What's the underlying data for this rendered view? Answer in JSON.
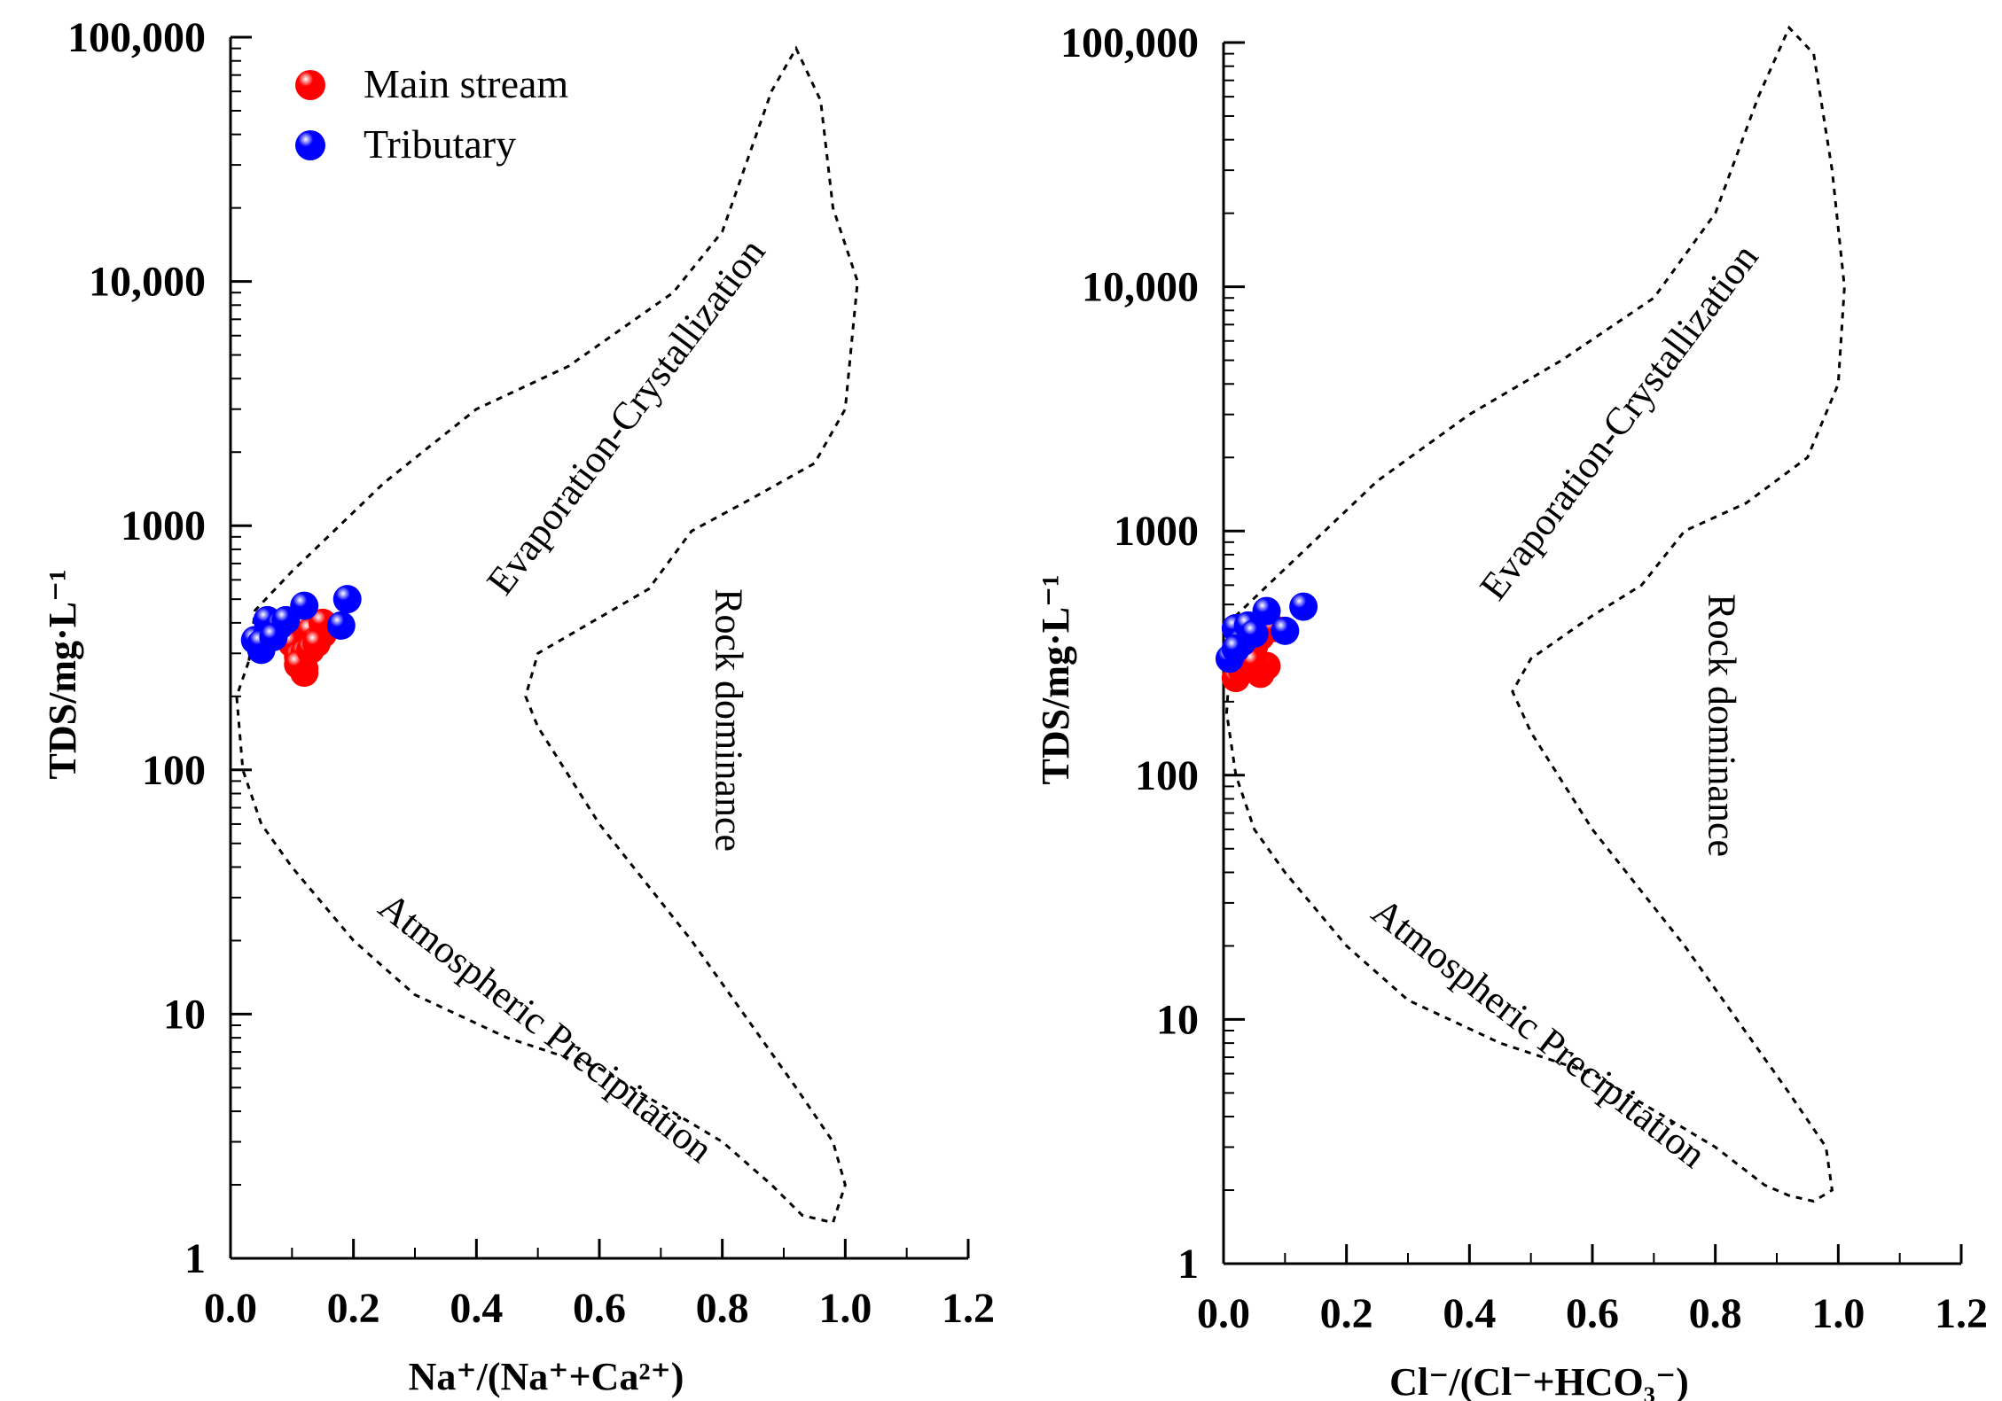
{
  "chart_data": [
    {
      "type": "scatter",
      "title": "",
      "xlabel": "Na⁺/(Na⁺+Ca²⁺)",
      "ylabel": "TDS/mg·L⁻¹",
      "x_ticks": [
        "0.0",
        "0.2",
        "0.4",
        "0.6",
        "0.8",
        "1.0",
        "1.2"
      ],
      "y_ticks": [
        "1",
        "10",
        "100",
        "1000",
        "10,000",
        "100,000"
      ],
      "xlim": [
        0,
        1.2
      ],
      "ylim": [
        1,
        100000
      ],
      "yscale": "log",
      "legend_position": "top-left",
      "region_labels": {
        "evaporation": "Evaporation-Crystallization",
        "rock": "Rock dominance",
        "atmospheric": "Atmospheric Precipitation"
      },
      "boundary": [
        [
          0.03,
          280
        ],
        [
          0.04,
          450
        ],
        [
          0.1,
          650
        ],
        [
          0.25,
          1500
        ],
        [
          0.4,
          3000
        ],
        [
          0.55,
          4500
        ],
        [
          0.72,
          9000
        ],
        [
          0.8,
          16000
        ],
        [
          0.88,
          60000
        ],
        [
          0.92,
          90000
        ],
        [
          0.96,
          55000
        ],
        [
          0.98,
          20000
        ],
        [
          1.02,
          10000
        ],
        [
          1.0,
          3000
        ],
        [
          0.95,
          1800
        ],
        [
          0.85,
          1300
        ],
        [
          0.75,
          950
        ],
        [
          0.68,
          550
        ],
        [
          0.6,
          420
        ],
        [
          0.5,
          300
        ],
        [
          0.48,
          200
        ],
        [
          0.5,
          150
        ],
        [
          0.6,
          60
        ],
        [
          0.75,
          20
        ],
        [
          0.92,
          5
        ],
        [
          0.98,
          3
        ],
        [
          1.0,
          2
        ],
        [
          0.98,
          1.4
        ],
        [
          0.93,
          1.5
        ],
        [
          0.88,
          2
        ],
        [
          0.8,
          3
        ],
        [
          0.6,
          6
        ],
        [
          0.45,
          8
        ],
        [
          0.3,
          12
        ],
        [
          0.2,
          20
        ],
        [
          0.1,
          40
        ],
        [
          0.05,
          60
        ],
        [
          0.02,
          100
        ],
        [
          0.01,
          200
        ],
        [
          0.03,
          280
        ]
      ],
      "series": [
        {
          "name": "Main stream",
          "color": "#ff0000",
          "points": [
            [
              0.1,
              330
            ],
            [
              0.11,
              290
            ],
            [
              0.12,
              300
            ],
            [
              0.12,
              260
            ],
            [
              0.13,
              370
            ],
            [
              0.14,
              340
            ],
            [
              0.15,
              360
            ],
            [
              0.15,
              400
            ],
            [
              0.12,
              250
            ],
            [
              0.11,
              270
            ],
            [
              0.13,
              310
            ],
            [
              0.14,
              330
            ]
          ]
        },
        {
          "name": "Tributary",
          "color": "#0000ff",
          "points": [
            [
              0.04,
              340
            ],
            [
              0.05,
              310
            ],
            [
              0.06,
              360
            ],
            [
              0.06,
              410
            ],
            [
              0.08,
              390
            ],
            [
              0.09,
              410
            ],
            [
              0.12,
              470
            ],
            [
              0.19,
              500
            ],
            [
              0.18,
              390
            ],
            [
              0.05,
              330
            ],
            [
              0.07,
              350
            ]
          ]
        }
      ]
    },
    {
      "type": "scatter",
      "title": "",
      "xlabel": "Cl⁻/(Cl⁻+HCO₃⁻)",
      "ylabel": "TDS/mg·L⁻¹",
      "x_ticks": [
        "0.0",
        "0.2",
        "0.4",
        "0.6",
        "0.8",
        "1.0",
        "1.2"
      ],
      "y_ticks": [
        "1",
        "10",
        "100",
        "1000",
        "10,000",
        "100,000"
      ],
      "xlim": [
        0,
        1.2
      ],
      "ylim": [
        1,
        100000
      ],
      "yscale": "log",
      "legend_position": "none",
      "region_labels": {
        "evaporation": "Evaporation-Crystallization",
        "rock": "Rock dominance",
        "atmospheric": "Atmospheric Precipitation"
      },
      "boundary": [
        [
          0.01,
          280
        ],
        [
          0.02,
          450
        ],
        [
          0.1,
          700
        ],
        [
          0.25,
          1600
        ],
        [
          0.4,
          3000
        ],
        [
          0.55,
          5000
        ],
        [
          0.7,
          9000
        ],
        [
          0.8,
          20000
        ],
        [
          0.87,
          60000
        ],
        [
          0.92,
          115000
        ],
        [
          0.96,
          90000
        ],
        [
          0.99,
          30000
        ],
        [
          1.01,
          10000
        ],
        [
          1.0,
          4000
        ],
        [
          0.95,
          2000
        ],
        [
          0.85,
          1300
        ],
        [
          0.75,
          1000
        ],
        [
          0.68,
          600
        ],
        [
          0.6,
          450
        ],
        [
          0.5,
          300
        ],
        [
          0.47,
          220
        ],
        [
          0.5,
          150
        ],
        [
          0.6,
          60
        ],
        [
          0.75,
          20
        ],
        [
          0.92,
          5
        ],
        [
          0.98,
          3
        ],
        [
          0.99,
          2
        ],
        [
          0.96,
          1.8
        ],
        [
          0.92,
          1.9
        ],
        [
          0.88,
          2.1
        ],
        [
          0.8,
          3
        ],
        [
          0.6,
          6
        ],
        [
          0.45,
          8
        ],
        [
          0.3,
          12
        ],
        [
          0.2,
          20
        ],
        [
          0.1,
          40
        ],
        [
          0.05,
          60
        ],
        [
          0.02,
          100
        ],
        [
          0.005,
          180
        ],
        [
          0.01,
          280
        ]
      ],
      "series": [
        {
          "name": "Main stream",
          "color": "#ff0000",
          "points": [
            [
              0.02,
              250
            ],
            [
              0.03,
              270
            ],
            [
              0.04,
              300
            ],
            [
              0.05,
              340
            ],
            [
              0.06,
              260
            ],
            [
              0.06,
              370
            ],
            [
              0.07,
              280
            ],
            [
              0.08,
              400
            ],
            [
              0.04,
              320
            ],
            [
              0.05,
              290
            ]
          ]
        },
        {
          "name": "Tributary",
          "color": "#0000ff",
          "points": [
            [
              0.01,
              300
            ],
            [
              0.02,
              400
            ],
            [
              0.03,
              350
            ],
            [
              0.04,
              410
            ],
            [
              0.05,
              380
            ],
            [
              0.07,
              470
            ],
            [
              0.1,
              390
            ],
            [
              0.13,
              490
            ],
            [
              0.02,
              330
            ]
          ]
        }
      ]
    }
  ]
}
